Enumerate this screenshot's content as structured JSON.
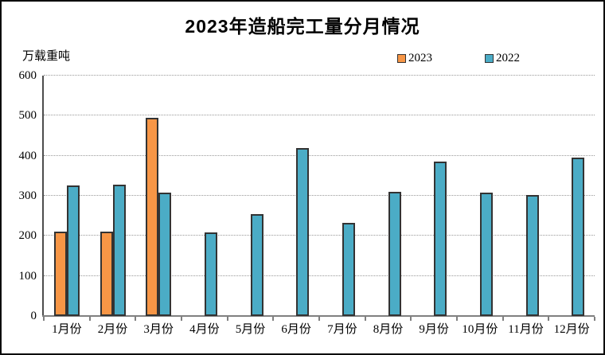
{
  "chart": {
    "title": "2023年造船完工量分月情况",
    "unit_label": "万载重吨",
    "chart_data": {
      "type": "bar",
      "categories": [
        "1月份",
        "2月份",
        "3月份",
        "4月份",
        "5月份",
        "6月份",
        "7月份",
        "8月份",
        "9月份",
        "10月份",
        "11月份",
        "12月份"
      ],
      "series": [
        {
          "name": "2023",
          "color": "#F79646",
          "values": [
            211,
            210,
            495,
            null,
            null,
            null,
            null,
            null,
            null,
            null,
            null,
            null
          ]
        },
        {
          "name": "2022",
          "color": "#4BACC6",
          "values": [
            326,
            328,
            308,
            208,
            255,
            420,
            233,
            309,
            386,
            307,
            302,
            395
          ]
        }
      ],
      "title": "2023年造船完工量分月情况",
      "xlabel": "",
      "ylabel": "万载重吨",
      "ylim": [
        0,
        600
      ],
      "y_step": 100,
      "y_tick_labels": [
        "0",
        "100",
        "200",
        "300",
        "400",
        "500",
        "600"
      ],
      "grid": "horizontal-dotted",
      "legend_position": "top-right"
    },
    "colors": {
      "series_2023": "#F79646",
      "series_2022": "#4BACC6",
      "bar_border": "#333333",
      "gridline": "#999999",
      "axis": "#808080",
      "text": "#000000",
      "background": "#ffffff",
      "frame_border": "#0a0a0a"
    }
  }
}
